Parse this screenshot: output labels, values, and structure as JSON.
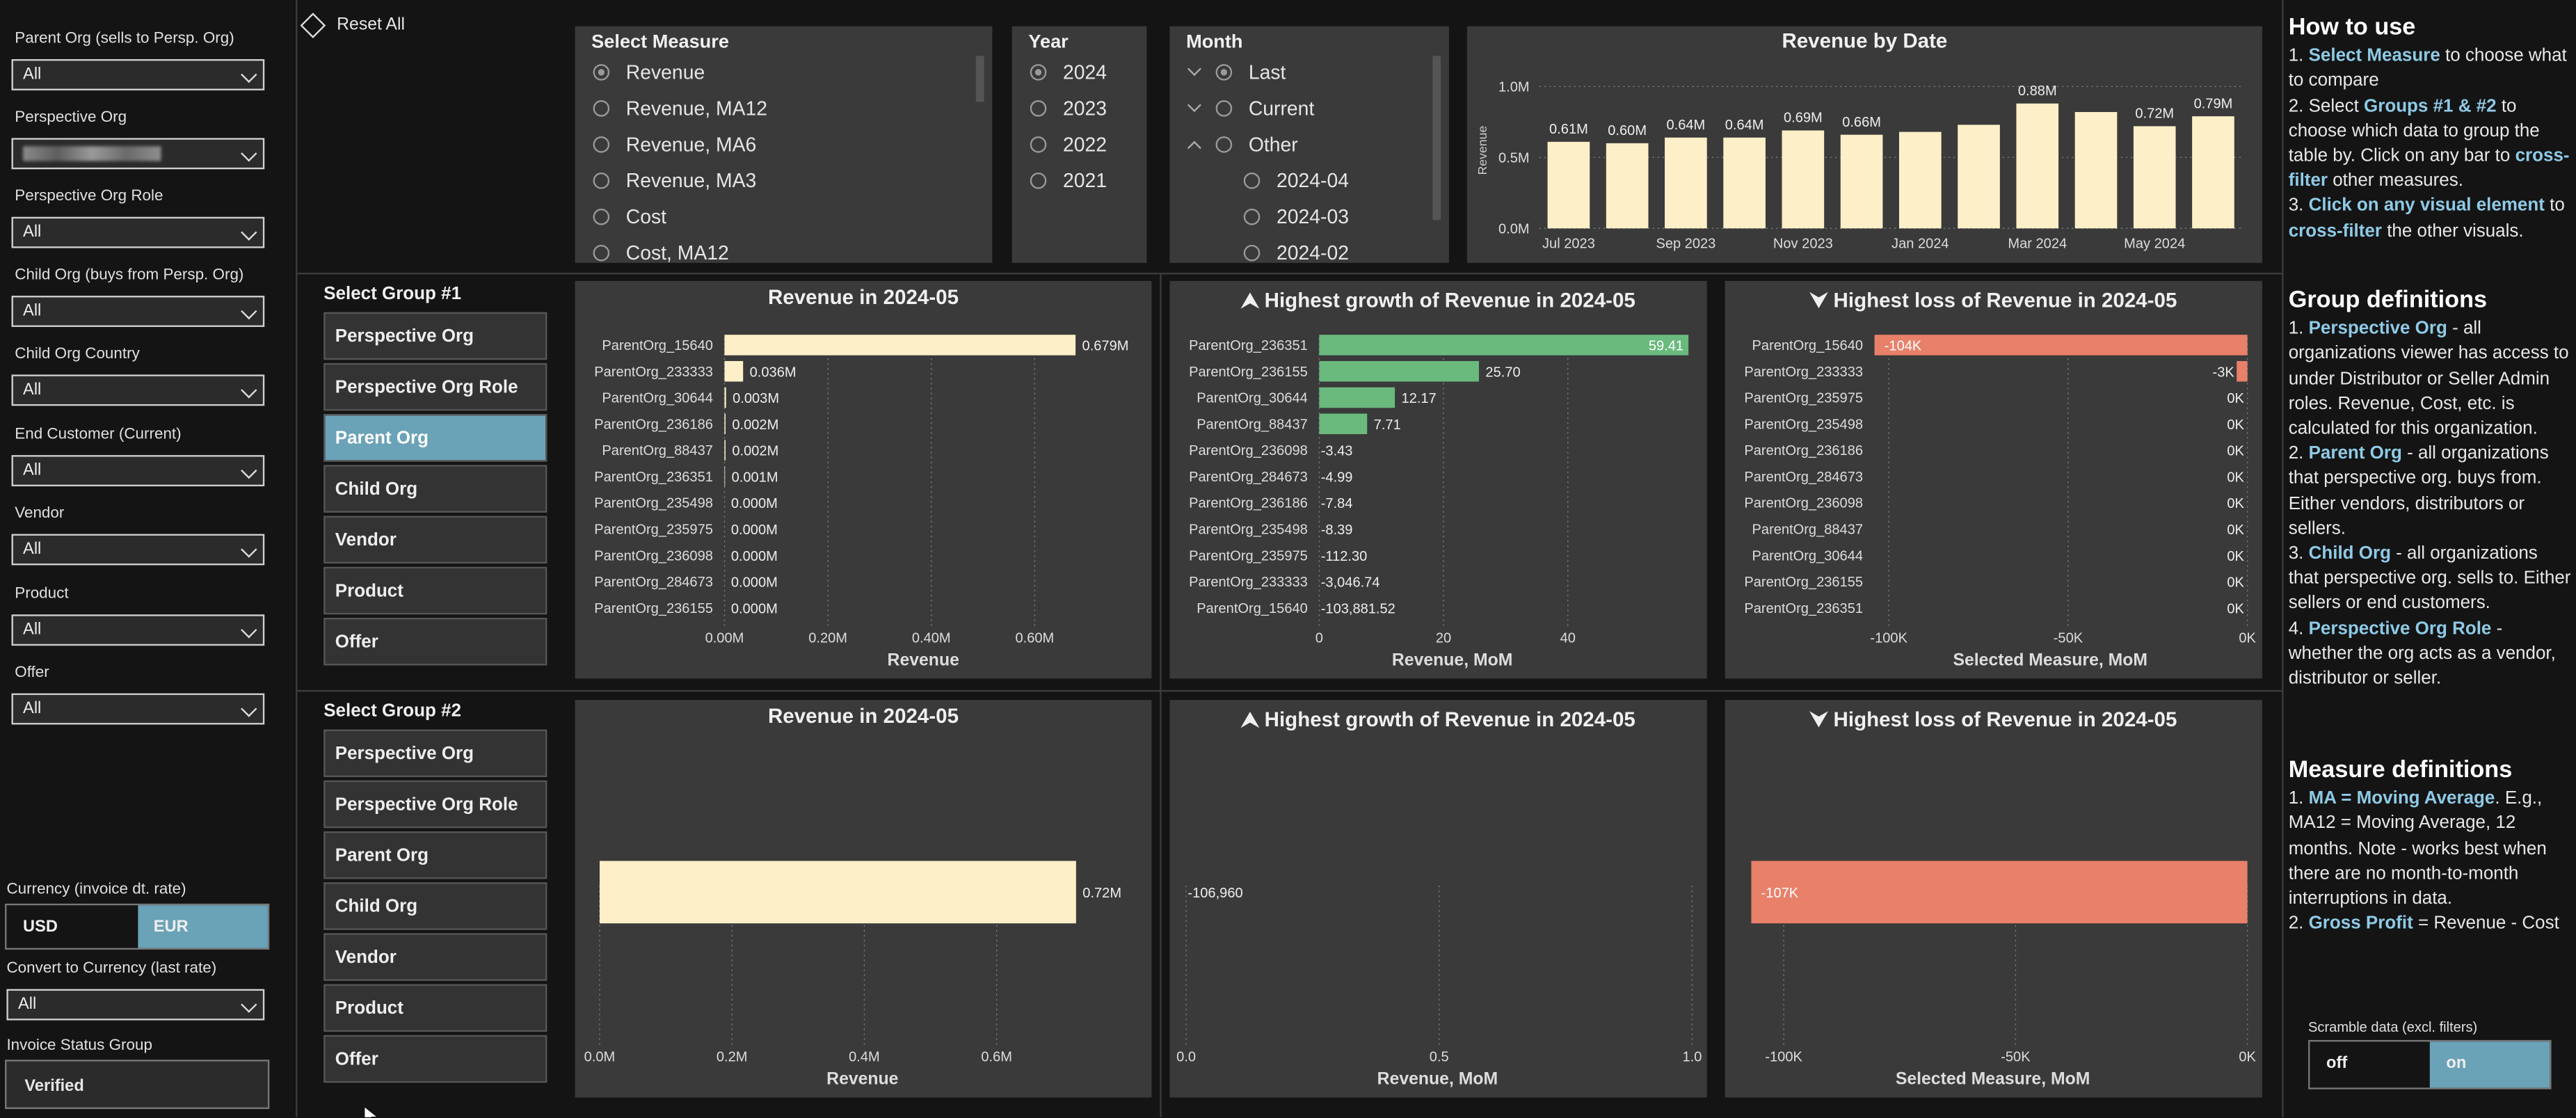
{
  "filters": {
    "items": [
      {
        "label": "Parent Org (sells to Persp. Org)",
        "value": "All"
      },
      {
        "label": "Perspective Org",
        "value": ""
      },
      {
        "label": "Perspective Org Role",
        "value": "All"
      },
      {
        "label": "Child Org (buys from Persp. Org)",
        "value": "All"
      },
      {
        "label": "Child Org Country",
        "value": "All"
      },
      {
        "label": "End Customer (Current)",
        "value": "All"
      },
      {
        "label": "Vendor",
        "value": "All"
      },
      {
        "label": "Product",
        "value": "All"
      },
      {
        "label": "Offer",
        "value": "All"
      }
    ],
    "currency_label": "Currency (invoice dt. rate)",
    "currency_options": [
      "USD",
      "EUR"
    ],
    "currency_selected": "EUR",
    "convert_label": "Convert to Currency (last rate)",
    "convert_value": "All",
    "invoice_status_label": "Invoice Status Group",
    "invoice_status_value": "Verified"
  },
  "reset_label": "Reset All",
  "measure": {
    "title": "Select Measure",
    "options": [
      "Revenue",
      "Revenue, MA12",
      "Revenue, MA6",
      "Revenue, MA3",
      "Cost",
      "Cost, MA12"
    ],
    "selected": "Revenue"
  },
  "year": {
    "title": "Year",
    "options": [
      "2024",
      "2023",
      "2022",
      "2021"
    ],
    "selected": "2024"
  },
  "month": {
    "title": "Month",
    "items": [
      {
        "label": "Last",
        "expand": "down",
        "selected": true
      },
      {
        "label": "Current",
        "expand": "down",
        "selected": false
      },
      {
        "label": "Other",
        "expand": "up",
        "selected": false
      },
      {
        "label": "2024-04",
        "expand": "",
        "selected": false
      },
      {
        "label": "2024-03",
        "expand": "",
        "selected": false
      },
      {
        "label": "2024-02",
        "expand": "",
        "selected": false
      }
    ]
  },
  "group1": {
    "title": "Select Group #1",
    "options": [
      "Perspective Org",
      "Perspective Org Role",
      "Parent Org",
      "Child Org",
      "Vendor",
      "Product",
      "Offer"
    ],
    "selected": "Parent Org"
  },
  "group2": {
    "title": "Select Group #2",
    "options": [
      "Perspective Org",
      "Perspective Org Role",
      "Parent Org",
      "Child Org",
      "Vendor",
      "Product",
      "Offer"
    ],
    "selected": ""
  },
  "help": {
    "how_title": "How to use",
    "how_items": [
      {
        "pre": "1. ",
        "bold": "Select Measure",
        "post": " to choose what to compare"
      },
      {
        "pre": "2. Select ",
        "bold": "Groups #1 & #2",
        "post": " to choose which data to group the table by. Click on any bar to ",
        "bold2": "cross-filter",
        "post2": " other measures."
      },
      {
        "pre": "3. ",
        "bold": "Click on any visual element",
        "post": " to ",
        "bold2": "cross-filter",
        "post2": " the other visuals."
      }
    ],
    "group_title": "Group definitions",
    "group_items": [
      {
        "pre": "1. ",
        "bold": "Perspective Org",
        "post": " - all organizations viewer has access to under Distributor or Seller Admin roles. Revenue, Cost, etc. is calculated for this organization."
      },
      {
        "pre": "2. ",
        "bold": "Parent Org",
        "post": " - all organizations that perspective org. buys from. Either vendors, distributors or sellers."
      },
      {
        "pre": "3. ",
        "bold": "Child Org",
        "post": " - all organizations that perspective org. sells to. Either sellers or end customers."
      },
      {
        "pre": "4. ",
        "bold": "Perspective Org Role",
        "post": " - whether the org acts as a vendor, distributor or seller."
      }
    ],
    "measure_title": "Measure definitions",
    "measure_items": [
      {
        "pre": "1. ",
        "bold": "MA = Moving Average",
        "post": ". E.g., MA12 = Moving Average, 12 months. Note - works best when there are no month-to-month interruptions in data."
      },
      {
        "pre": "2. ",
        "bold": "Gross Profit",
        "post": " = Revenue - Cost"
      }
    ]
  },
  "scramble": {
    "label": "Scramble data (excl. filters)",
    "options": [
      "off",
      "on"
    ],
    "selected": "on"
  },
  "colors": {
    "cream": "#fdefc8",
    "green": "#6aba7e",
    "red": "#e8806a",
    "accent": "#6aa2b7",
    "link": "#8ecae6"
  },
  "chart_data": [
    {
      "id": "revenue-by-date",
      "type": "bar",
      "title": "Revenue by Date",
      "ylabel": "Revenue",
      "categories": [
        "2023-07",
        "2023-08",
        "2023-09",
        "2023-10",
        "2023-11",
        "2023-12",
        "2024-01",
        "2024-02",
        "2024-03",
        "2024-04",
        "2024-05",
        "2024-06"
      ],
      "values": [
        0.61,
        0.6,
        0.64,
        0.64,
        0.69,
        0.66,
        0.68,
        0.73,
        0.88,
        0.82,
        0.72,
        0.79
      ],
      "data_labels": [
        "0.61M",
        "0.60M",
        "0.64M",
        "0.64M",
        "0.69M",
        "0.66M",
        "",
        "",
        "0.88M",
        "",
        "0.72M",
        "0.79M"
      ],
      "x_ticks": [
        "Jul 2023",
        "Sep 2023",
        "Nov 2023",
        "Jan 2024",
        "Mar 2024",
        "May 2024"
      ],
      "y_ticks": [
        "0.0M",
        "0.5M",
        "1.0M"
      ],
      "ylim": [
        0,
        1.1
      ]
    },
    {
      "id": "g1-revenue",
      "type": "bar",
      "orientation": "horizontal",
      "title": "Revenue in 2024-05",
      "xlabel": "Revenue",
      "categories": [
        "ParentOrg_15640",
        "ParentOrg_233333",
        "ParentOrg_30644",
        "ParentOrg_236186",
        "ParentOrg_88437",
        "ParentOrg_236351",
        "ParentOrg_235498",
        "ParentOrg_235975",
        "ParentOrg_236098",
        "ParentOrg_284673",
        "ParentOrg_236155"
      ],
      "values": [
        0.679,
        0.036,
        0.003,
        0.002,
        0.002,
        0.001,
        0.0,
        0.0,
        0.0,
        0.0,
        0.0
      ],
      "data_labels": [
        "0.679M",
        "0.036M",
        "0.003M",
        "0.002M",
        "0.002M",
        "0.001M",
        "0.000M",
        "0.000M",
        "0.000M",
        "0.000M",
        "0.000M"
      ],
      "x_ticks": [
        "0.00M",
        "0.20M",
        "0.40M",
        "0.60M"
      ],
      "xlim": [
        0,
        0.68
      ]
    },
    {
      "id": "g1-growth",
      "type": "bar",
      "orientation": "horizontal",
      "title": "Highest growth of Revenue in 2024-05",
      "xlabel": "Revenue, MoM",
      "categories": [
        "ParentOrg_236351",
        "ParentOrg_236155",
        "ParentOrg_30644",
        "ParentOrg_88437",
        "ParentOrg_236098",
        "ParentOrg_284673",
        "ParentOrg_236186",
        "ParentOrg_235498",
        "ParentOrg_235975",
        "ParentOrg_233333",
        "ParentOrg_15640"
      ],
      "values": [
        59.41,
        25.7,
        12.17,
        7.71,
        -3.43,
        -4.99,
        -7.84,
        -8.39,
        -112.3,
        -3046.74,
        -103881.52
      ],
      "data_labels": [
        "59.41",
        "25.70",
        "12.17",
        "7.71",
        "-3.43",
        "-4.99",
        "-7.84",
        "-8.39",
        "-112.30",
        "-3,046.74",
        "-103,881.52"
      ],
      "x_ticks": [
        "0",
        "20",
        "40"
      ],
      "xlim": [
        0,
        60
      ]
    },
    {
      "id": "g1-loss",
      "type": "bar",
      "orientation": "horizontal",
      "title": "Highest loss of Revenue in 2024-05",
      "xlabel": "Selected Measure, MoM",
      "categories": [
        "ParentOrg_15640",
        "ParentOrg_233333",
        "ParentOrg_235975",
        "ParentOrg_235498",
        "ParentOrg_236186",
        "ParentOrg_284673",
        "ParentOrg_236098",
        "ParentOrg_88437",
        "ParentOrg_30644",
        "ParentOrg_236155",
        "ParentOrg_236351"
      ],
      "values": [
        -104,
        -3,
        0,
        0,
        0,
        0,
        0,
        0,
        0,
        0,
        0
      ],
      "data_labels": [
        "-104K",
        "-3K",
        "0K",
        "0K",
        "0K",
        "0K",
        "0K",
        "0K",
        "0K",
        "0K",
        "0K"
      ],
      "x_ticks": [
        "-100K",
        "-50K",
        "0K"
      ],
      "xlim": [
        -104,
        0
      ]
    },
    {
      "id": "g2-revenue",
      "type": "bar",
      "orientation": "horizontal",
      "title": "Revenue in 2024-05",
      "xlabel": "Revenue",
      "categories": [
        ""
      ],
      "values": [
        0.72
      ],
      "data_labels": [
        "0.72M"
      ],
      "x_ticks": [
        "0.0M",
        "0.2M",
        "0.4M",
        "0.6M"
      ],
      "xlim": [
        0,
        0.72
      ]
    },
    {
      "id": "g2-growth",
      "type": "bar",
      "orientation": "horizontal",
      "title": "Highest growth of Revenue in 2024-05",
      "xlabel": "Revenue, MoM",
      "categories": [
        ""
      ],
      "values": [
        -106960
      ],
      "data_labels": [
        "-106,960"
      ],
      "x_ticks": [
        "0.0",
        "0.5",
        "1.0"
      ],
      "xlim": [
        0,
        1
      ]
    },
    {
      "id": "g2-loss",
      "type": "bar",
      "orientation": "horizontal",
      "title": "Highest loss of Revenue in 2024-05",
      "xlabel": "Selected Measure, MoM",
      "categories": [
        ""
      ],
      "values": [
        -107
      ],
      "data_labels": [
        "-107K"
      ],
      "x_ticks": [
        "-100K",
        "-50K",
        "0K"
      ],
      "xlim": [
        -107,
        0
      ]
    }
  ]
}
